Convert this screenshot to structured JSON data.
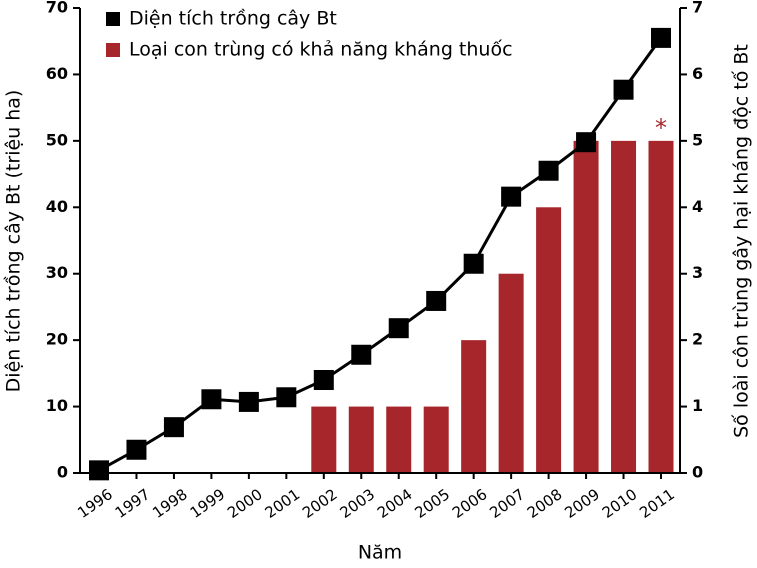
{
  "chart_data": {
    "type": "bar",
    "x_label": "Năm",
    "y_label": "Diện tích trồng cây Bt (triệu ha)",
    "y2_label": "Số loài côn trùng gây hại kháng độc tố Bt",
    "categories": [
      "1996",
      "1997",
      "1998",
      "1999",
      "2000",
      "2001",
      "2002",
      "2003",
      "2004",
      "2005",
      "2006",
      "2007",
      "2008",
      "2009",
      "2010",
      "2011"
    ],
    "series": [
      {
        "name": "Loại con trùng có khả năng kháng thuốc",
        "type": "bar",
        "axis": "y2",
        "color": "#a6262c",
        "values": [
          0,
          0,
          0,
          0,
          0,
          0,
          1,
          1,
          1,
          1,
          2,
          3,
          4,
          5,
          5,
          5
        ]
      },
      {
        "name": "Diện tích trồng cây Bt",
        "type": "line",
        "color": "#000000",
        "values": [
          0.4,
          3.5,
          6.9,
          11.1,
          10.7,
          11.4,
          14,
          17.8,
          21.8,
          25.9,
          31.5,
          41.6,
          45.5,
          49.8,
          57.7,
          65.5
        ]
      }
    ],
    "annotation": "*",
    "ylim": [
      0,
      70
    ],
    "yticks": [
      0,
      10,
      20,
      30,
      40,
      50,
      60,
      70
    ],
    "y2lim": [
      0,
      7
    ],
    "y2ticks": [
      0,
      1,
      2,
      3,
      4,
      5,
      6,
      7
    ],
    "legend": "top-left"
  }
}
